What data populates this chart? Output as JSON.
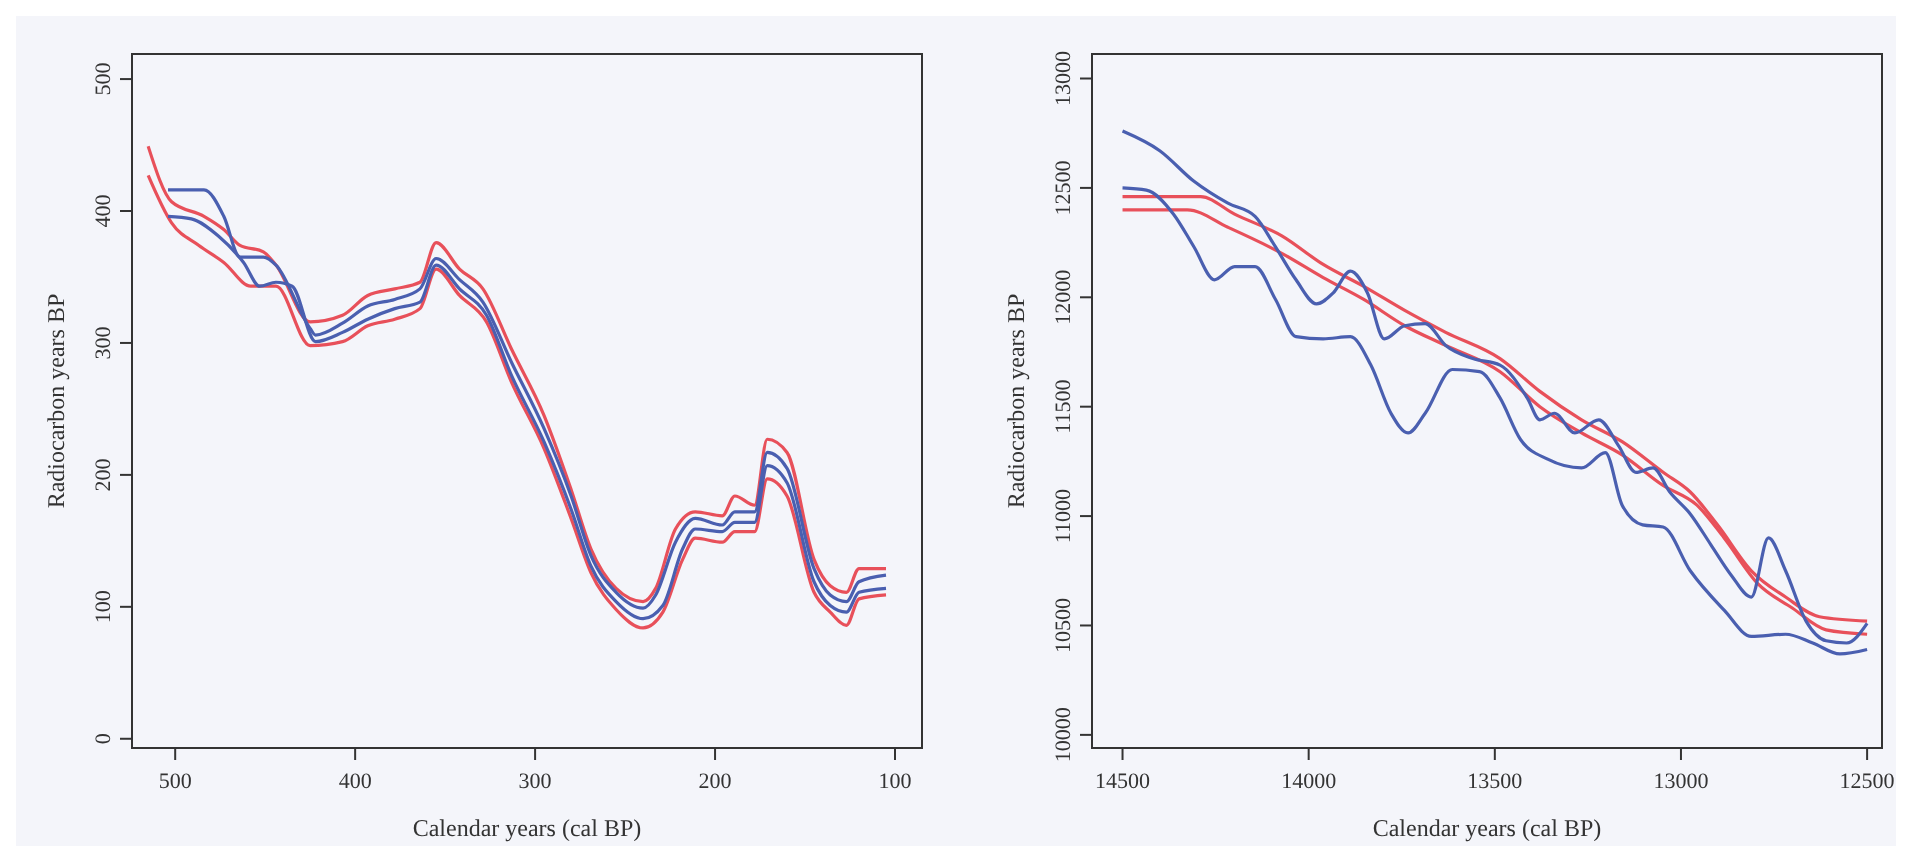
{
  "chart_data": [
    {
      "type": "line",
      "xlabel": "Calendar years (cal BP)",
      "ylabel": "Radiocarbon years BP",
      "xlim": [
        524,
        85
      ],
      "xticks": [
        500,
        400,
        300,
        200,
        100
      ],
      "ylim": [
        -7,
        519
      ],
      "yticks": [
        0,
        100,
        200,
        300,
        400,
        500
      ],
      "series": [
        {
          "color": "#e8505a",
          "x": [
            515,
            502,
            484,
            473,
            464,
            451,
            444,
            425,
            407,
            393,
            378,
            364,
            355,
            342,
            329,
            313,
            295,
            280,
            269,
            255,
            240,
            233,
            222,
            211,
            196,
            189,
            178,
            171,
            160,
            145,
            136,
            127,
            120,
            105
          ],
          "values": [
            449,
            407,
            396,
            386,
            374,
            369,
            359,
            316,
            321,
            336,
            341,
            346,
            376,
            356,
            341,
            295,
            245,
            189,
            144,
            114,
            104,
            114,
            159,
            172,
            169,
            184,
            177,
            227,
            217,
            136,
            116,
            111,
            129,
            129
          ]
        },
        {
          "color": "#e8505a",
          "x": [
            515,
            502,
            487,
            473,
            458,
            444,
            425,
            407,
            393,
            378,
            364,
            355,
            342,
            327,
            313,
            295,
            280,
            269,
            255,
            240,
            229,
            218,
            211,
            196,
            189,
            178,
            171,
            160,
            145,
            136,
            127,
            120,
            105
          ],
          "values": [
            427,
            391,
            374,
            361,
            343,
            343,
            298,
            301,
            313,
            318,
            326,
            356,
            336,
            316,
            270,
            220,
            167,
            126,
            98,
            84,
            96,
            136,
            152,
            149,
            157,
            157,
            197,
            184,
            111,
            96,
            86,
            106,
            109
          ]
        },
        {
          "color": "#4a5fb0",
          "x": [
            504,
            484,
            473,
            464,
            451,
            444,
            425,
            422,
            407,
            393,
            378,
            364,
            355,
            342,
            329,
            313,
            295,
            280,
            269,
            255,
            240,
            233,
            222,
            211,
            196,
            189,
            178,
            171,
            160,
            145,
            136,
            127,
            120,
            105
          ],
          "values": [
            416,
            416,
            396,
            365,
            365,
            359,
            311,
            306,
            315,
            328,
            333,
            341,
            364,
            348,
            331,
            285,
            235,
            184,
            139,
            111,
            99,
            109,
            149,
            167,
            162,
            172,
            172,
            217,
            205,
            129,
            109,
            104,
            119,
            124
          ]
        },
        {
          "color": "#4a5fb0",
          "x": [
            504,
            491,
            476,
            462,
            453,
            444,
            435,
            422,
            407,
            393,
            378,
            364,
            355,
            342,
            327,
            313,
            295,
            280,
            269,
            255,
            240,
            229,
            218,
            211,
            196,
            189,
            178,
            171,
            160,
            145,
            136,
            127,
            120,
            105
          ],
          "values": [
            396,
            394,
            381,
            361,
            343,
            346,
            343,
            301,
            308,
            318,
            326,
            331,
            359,
            341,
            321,
            275,
            225,
            174,
            131,
            104,
            91,
            101,
            144,
            159,
            157,
            164,
            164,
            207,
            194,
            119,
            101,
            96,
            111,
            114
          ]
        }
      ]
    },
    {
      "type": "line",
      "xlabel": "Calendar years (cal BP)",
      "ylabel": "Radiocarbon years BP",
      "xlim": [
        14582,
        12460
      ],
      "xticks": [
        14500,
        14000,
        13500,
        13000,
        12500
      ],
      "ylim": [
        9940,
        13112
      ],
      "yticks": [
        10000,
        10500,
        11000,
        11500,
        12000,
        12500,
        13000
      ],
      "series": [
        {
          "color": "#e8505a",
          "x": [
            14500,
            14290,
            14199,
            14071,
            13961,
            13852,
            13742,
            13632,
            13486,
            13379,
            13267,
            13158,
            13048,
            12975,
            12902,
            12811,
            12719,
            12628,
            12500
          ],
          "values": [
            12460,
            12460,
            12380,
            12280,
            12150,
            12050,
            11940,
            11840,
            11720,
            11570,
            11440,
            11340,
            11200,
            11110,
            10960,
            10750,
            10630,
            10540,
            10520
          ]
        },
        {
          "color": "#e8505a",
          "x": [
            14500,
            14326,
            14217,
            14071,
            13961,
            13852,
            13742,
            13632,
            13486,
            13379,
            13267,
            13158,
            13048,
            12957,
            12884,
            12793,
            12701,
            12610,
            12500
          ],
          "values": [
            12400,
            12400,
            12320,
            12200,
            12090,
            11990,
            11870,
            11780,
            11660,
            11500,
            11380,
            11280,
            11140,
            11050,
            10900,
            10690,
            10580,
            10480,
            10460
          ]
        },
        {
          "color": "#4a5fb0",
          "x": [
            14500,
            14400,
            14308,
            14217,
            14144,
            14089,
            14034,
            13979,
            13934,
            13888,
            13842,
            13797,
            13742,
            13687,
            13632,
            13559,
            13486,
            13413,
            13379,
            13340,
            13285,
            13221,
            13167,
            13121,
            13075,
            13030,
            12975,
            12920,
            12865,
            12811,
            12765,
            12719,
            12664,
            12610,
            12555,
            12500
          ],
          "values": [
            12760,
            12670,
            12530,
            12430,
            12370,
            12230,
            12080,
            11970,
            12020,
            12120,
            12020,
            11810,
            11870,
            11880,
            11780,
            11720,
            11690,
            11540,
            11440,
            11470,
            11380,
            11440,
            11320,
            11200,
            11220,
            11110,
            11010,
            10870,
            10730,
            10630,
            10900,
            10750,
            10520,
            10430,
            10420,
            10510
          ]
        },
        {
          "color": "#4a5fb0",
          "x": [
            14500,
            14436,
            14363,
            14308,
            14253,
            14199,
            14144,
            14089,
            14034,
            13961,
            13888,
            13833,
            13779,
            13733,
            13687,
            13614,
            13541,
            13486,
            13431,
            13358,
            13267,
            13203,
            13158,
            13103,
            13048,
            12975,
            12884,
            12811,
            12719,
            12646,
            12573,
            12500
          ],
          "values": [
            12500,
            12490,
            12380,
            12230,
            12080,
            12140,
            12140,
            11990,
            11820,
            11810,
            11820,
            11690,
            11470,
            11380,
            11470,
            11670,
            11660,
            11540,
            11350,
            11260,
            11220,
            11290,
            11050,
            10960,
            10950,
            10750,
            10570,
            10450,
            10460,
            10420,
            10370,
            10390
          ]
        }
      ]
    }
  ]
}
